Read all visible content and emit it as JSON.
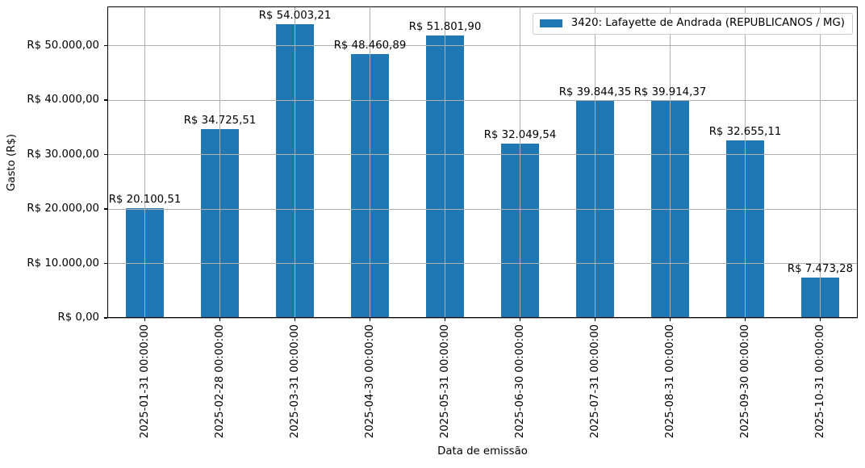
{
  "chart_data": {
    "type": "bar",
    "title": "",
    "xlabel": "Data de emissão",
    "ylabel": "Gasto (R$)",
    "grid": true,
    "legend_position": "upper right",
    "legend": {
      "entries": [
        {
          "label": "3420: Lafayette de Andrada (REPUBLICANOS / MG)",
          "color": "#1f77b4"
        }
      ]
    },
    "categories": [
      "2025-01-31 00:00:00",
      "2025-02-28 00:00:00",
      "2025-03-31 00:00:00",
      "2025-04-30 00:00:00",
      "2025-05-31 00:00:00",
      "2025-06-30 00:00:00",
      "2025-07-31 00:00:00",
      "2025-08-31 00:00:00",
      "2025-09-30 00:00:00",
      "2025-10-31 00:00:00"
    ],
    "series": [
      {
        "name": "3420: Lafayette de Andrada (REPUBLICANOS / MG)",
        "values": [
          20100.51,
          34725.51,
          54003.21,
          48460.89,
          51801.9,
          32049.54,
          39844.35,
          39914.37,
          32655.11,
          7473.28
        ],
        "value_labels": [
          "R$ 20.100,51",
          "R$ 34.725,51",
          "R$ 54.003,21",
          "R$ 48.460,89",
          "R$ 51.801,90",
          "R$ 32.049,54",
          "R$ 39.844,35",
          "R$ 39.914,37",
          "R$ 32.655,11",
          "R$ 7.473,28"
        ]
      }
    ],
    "yticks": {
      "values": [
        0,
        10000,
        20000,
        30000,
        40000,
        50000
      ],
      "labels": [
        "R$ 0,00",
        "R$ 10.000,00",
        "R$ 20.000,00",
        "R$ 30.000,00",
        "R$ 40.000,00",
        "R$ 50.000,00"
      ]
    },
    "ylim": [
      0,
      57185
    ],
    "bar_color": "#1f77b4",
    "grid_color": "#b0b0b0"
  }
}
